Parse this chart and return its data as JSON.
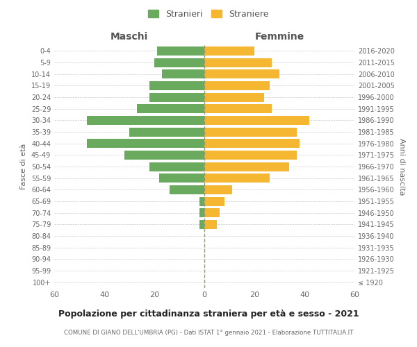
{
  "age_groups": [
    "100+",
    "95-99",
    "90-94",
    "85-89",
    "80-84",
    "75-79",
    "70-74",
    "65-69",
    "60-64",
    "55-59",
    "50-54",
    "45-49",
    "40-44",
    "35-39",
    "30-34",
    "25-29",
    "20-24",
    "15-19",
    "10-14",
    "5-9",
    "0-4"
  ],
  "birth_years": [
    "≤ 1920",
    "1921-1925",
    "1926-1930",
    "1931-1935",
    "1936-1940",
    "1941-1945",
    "1946-1950",
    "1951-1955",
    "1956-1960",
    "1961-1965",
    "1966-1970",
    "1971-1975",
    "1976-1980",
    "1981-1985",
    "1986-1990",
    "1991-1995",
    "1996-2000",
    "2001-2005",
    "2006-2010",
    "2011-2015",
    "2016-2020"
  ],
  "males": [
    0,
    0,
    0,
    0,
    0,
    2,
    2,
    2,
    14,
    18,
    22,
    32,
    47,
    30,
    47,
    27,
    22,
    22,
    17,
    20,
    19
  ],
  "females": [
    0,
    0,
    0,
    0,
    0,
    5,
    6,
    8,
    11,
    26,
    34,
    37,
    38,
    37,
    42,
    27,
    24,
    26,
    30,
    27,
    20
  ],
  "male_color": "#6aaa5e",
  "female_color": "#f5b731",
  "background_color": "#ffffff",
  "grid_color": "#cccccc",
  "title": "Popolazione per cittadinanza straniera per età e sesso - 2021",
  "subtitle": "COMUNE DI GIANO DELL'UMBRIA (PG) - Dati ISTAT 1° gennaio 2021 - Elaborazione TUTTITALIA.IT",
  "xlabel_left": "Maschi",
  "xlabel_right": "Femmine",
  "ylabel_left": "Fasce di età",
  "ylabel_right": "Anni di nascita",
  "legend_male": "Stranieri",
  "legend_female": "Straniere",
  "xlim": 60,
  "tick_step": 20
}
